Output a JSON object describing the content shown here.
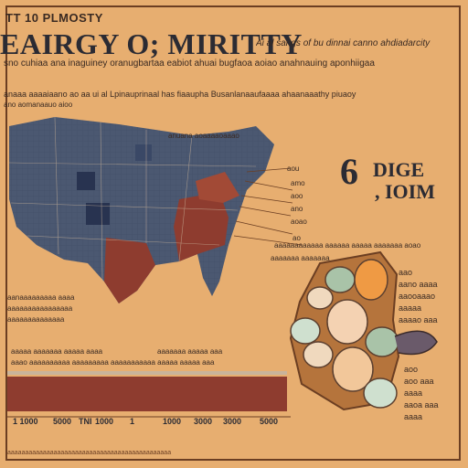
{
  "overline": "TT 10 PLMOSTY",
  "title": "EAIRGY O; MIRITTY",
  "subtitle": "Ai al sangs of bu dinnai canno ahdiadarcity",
  "tagline": "sno cuhiaa ana inaguiney oranugbartaa eabiot ahuai bugfaoa aoiao anahnauing aponhiigaa",
  "intro": "anaaa aaaaiaano ao aa ui al Lpinauprinaal has fiaaupha Busanlanaaufaaaa ahaanaaathy piuaoy",
  "intro_sub": "ano aomanaauo aioo",
  "map_caption": "anuana aoaaaaoaaao",
  "callouts": [
    "aou",
    "amo",
    "aoo",
    "ano",
    "aoao",
    "ao"
  ],
  "stat": {
    "big": "6",
    "word": "DIGE",
    "unit": ", IOIM"
  },
  "right_label": "aaaaaaaaaaaa aaaaaa aaaaa aaaaaaa aoao",
  "right_label2": "aaaaaaa aaaaaaa",
  "stone_notes": [
    "aao",
    "aano aaaa",
    "aaooaaao",
    "aaaaa",
    "aaaao aaa"
  ],
  "stone_notes2": [
    "aoo",
    "aoo aaa",
    "aaaa",
    "aaoa aaa",
    "aaaa"
  ],
  "left_notes": [
    "aanaaaaaaaaa aaaa",
    "aaaaaaaaaaaaaaaa",
    "aaaaaaaaaaaaaa"
  ],
  "chart_heads": [
    "aaaaa aaaaaaa aaaaa aaaa",
    "aaaaaaa aaaaa aaa"
  ],
  "chart_line": "aaao aaaaaaaaaa aaaaaaaaa aaaaaaaaaaa aaaaa aaaaa aaa",
  "ticks": [
    "1 1000",
    "5000",
    "TNI",
    "1000",
    "1",
    "1000",
    "3000",
    "3000",
    "5000"
  ],
  "footer": "aaaaaaaaaaaaaaaaaaaaaaaaaaaaaaaaaaaaaaaaaaaaaa",
  "colors": {
    "background": "#e7ae70",
    "map_blue": "#4b5871",
    "map_red": "#8e3c2f",
    "bar_red": "#8e3c2f",
    "text": "#2b2b33"
  }
}
